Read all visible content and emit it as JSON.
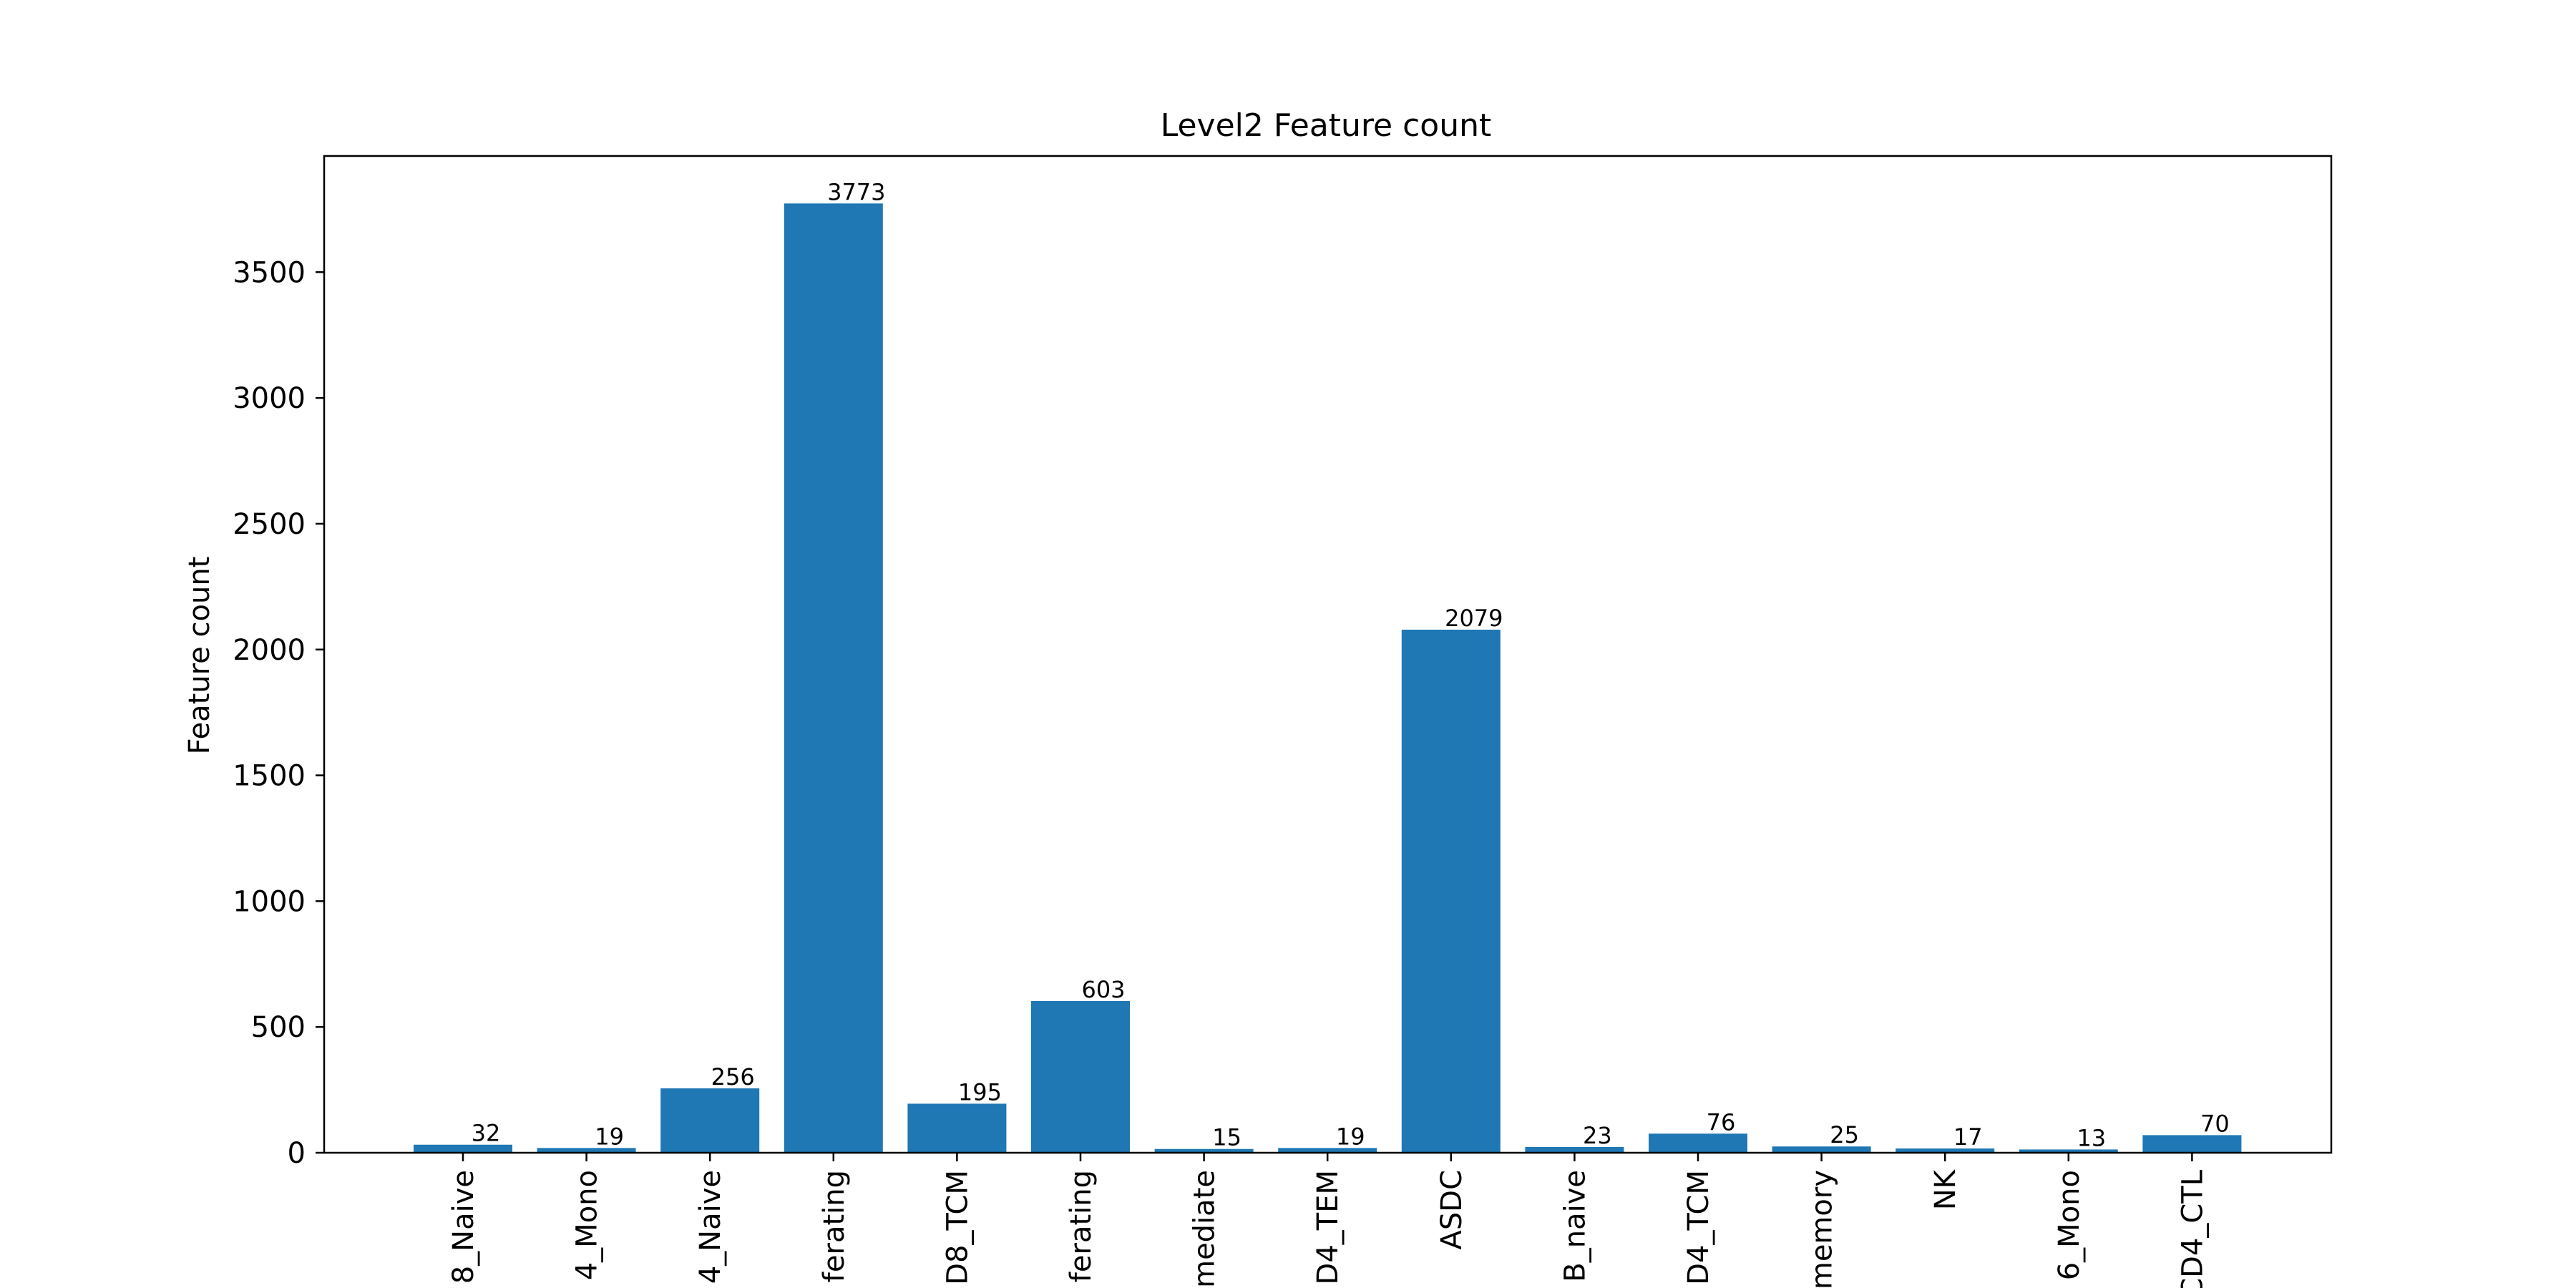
{
  "chart_data": {
    "type": "bar",
    "title": "Level2 Feature count",
    "xlabel": "",
    "ylabel": "Feature count",
    "categories": [
      "8_Naive",
      "4_Mono",
      "4_Naive",
      "ferating",
      "D8_TCM",
      "ferating",
      "mediate",
      "D4_TEM",
      "ASDC",
      "B_naive",
      "D4_TCM",
      "memory",
      "NK",
      "6_Mono",
      "CD4_CTL"
    ],
    "values": [
      32,
      19,
      256,
      3773,
      195,
      603,
      15,
      19,
      2079,
      23,
      76,
      25,
      17,
      13,
      70
    ],
    "ylim": [
      0,
      3961.65
    ],
    "yticks": [
      0,
      500,
      1000,
      1500,
      2000,
      2500,
      3000,
      3500
    ],
    "grid": false,
    "legend": "none",
    "bar_color": "#1f77b4"
  }
}
